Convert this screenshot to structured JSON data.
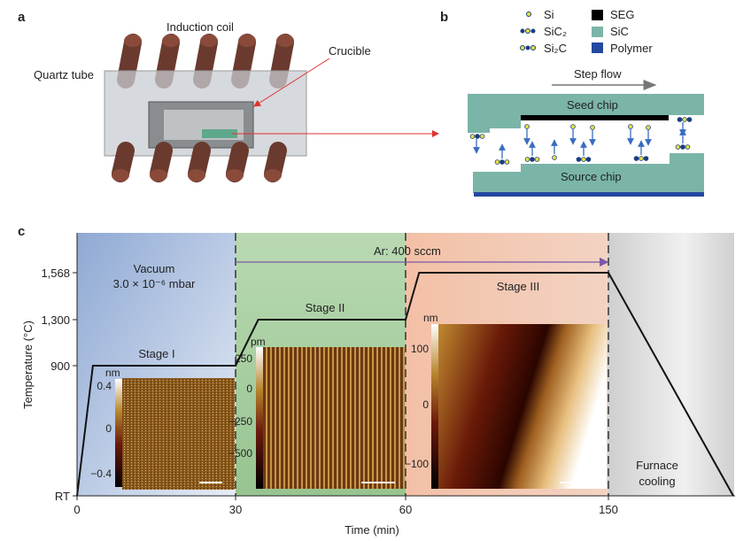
{
  "panel_a": {
    "letter": "a",
    "induction_coil": "Induction coil",
    "quartz_tube": "Quartz tube",
    "crucible": "Crucible"
  },
  "panel_b": {
    "letter": "b",
    "legend": [
      {
        "label": "Si",
        "kind": "molecule"
      },
      {
        "label": "SiC₂",
        "kind": "molecule"
      },
      {
        "label": "Si₂C",
        "kind": "molecule"
      },
      {
        "label": "SEG",
        "color": "#000000"
      },
      {
        "label": "SiC",
        "color": "#7ab5a8"
      },
      {
        "label": "Polymer",
        "color": "#2448a0"
      }
    ],
    "step_flow": "Step flow",
    "seed_chip": "Seed chip",
    "source_chip": "Source chip"
  },
  "panel_c": {
    "letter": "c",
    "vacuum": "Vacuum",
    "pressure": "3.0 × 10⁻⁶ mbar",
    "ar_flow": "Ar: 400 sccm",
    "stages": [
      "Stage I",
      "Stage II",
      "Stage III"
    ],
    "cooling": "Furnace\ncooling",
    "insets": [
      {
        "unit": "nm",
        "ticks": [
          "0.4",
          "0",
          "−0.4"
        ]
      },
      {
        "unit": "pm",
        "ticks": [
          "250",
          "0",
          "−250",
          "−500"
        ]
      },
      {
        "unit": "nm",
        "ticks": [
          "100",
          "0",
          "−100"
        ]
      }
    ]
  },
  "chart_data": {
    "type": "line",
    "xlabel": "Time (min)",
    "ylabel": "Temperature (°C)",
    "x_ticks": [
      "0",
      "30",
      "60",
      "150"
    ],
    "y_ticks": [
      "RT",
      "900",
      "1,300",
      "1,568"
    ],
    "region_colors": {
      "vacuum": "#9db4d8",
      "stage_ii": "#a8d0a0",
      "stage_iii": "#f0b8a0",
      "cooling": "#d8d8d8"
    },
    "profile": [
      {
        "x": 0,
        "y": "RT"
      },
      {
        "x": 3,
        "y": 900
      },
      {
        "x": 30,
        "y": 900
      },
      {
        "x": 34,
        "y": 1300
      },
      {
        "x": 60,
        "y": 1300
      },
      {
        "x": 66,
        "y": 1568
      },
      {
        "x": 150,
        "y": 1568
      },
      {
        "x": "end",
        "y": "RT"
      }
    ]
  }
}
